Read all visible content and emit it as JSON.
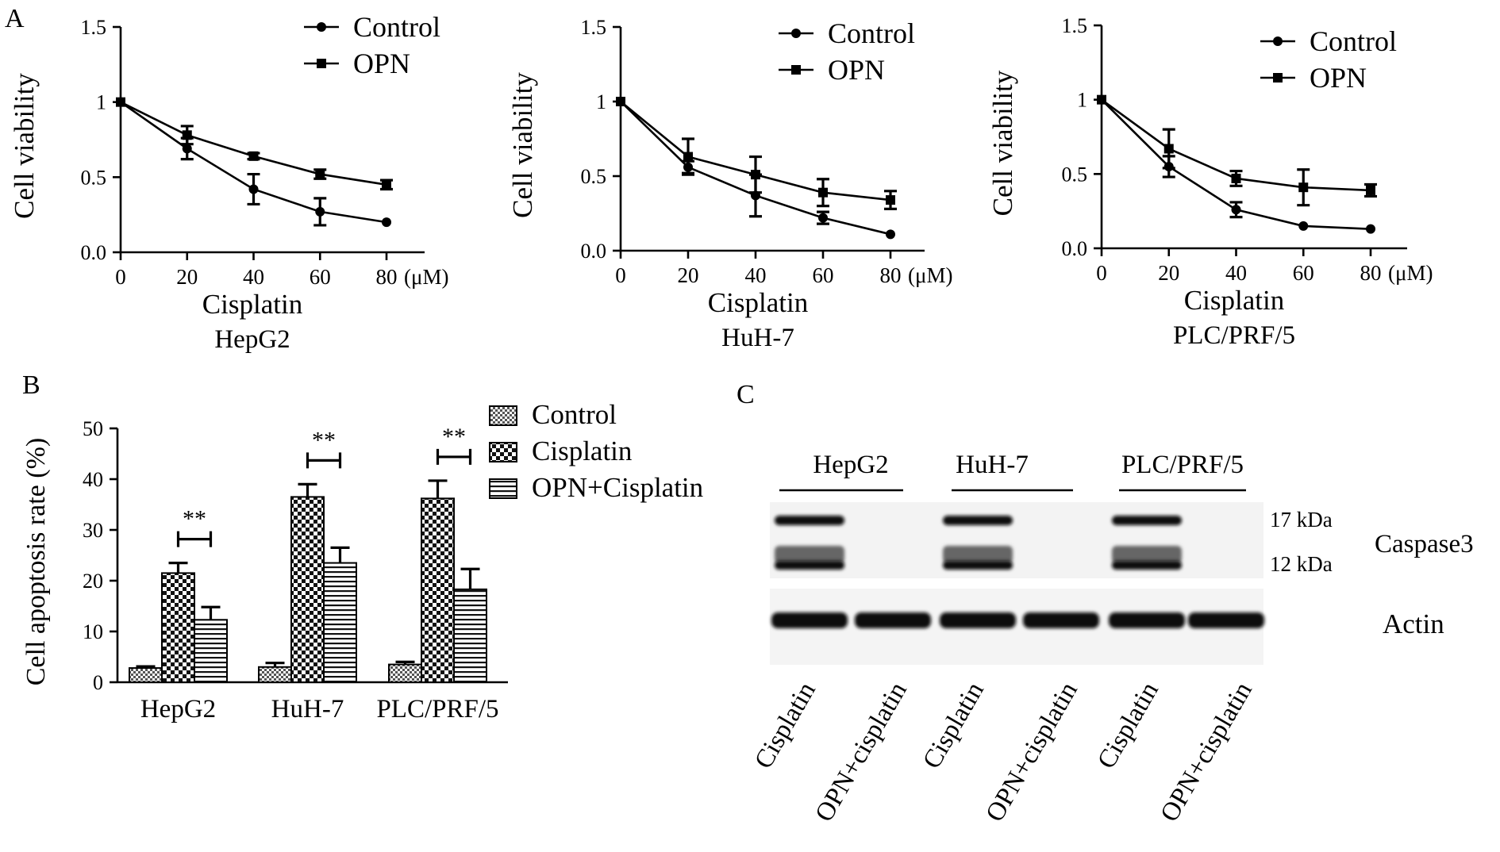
{
  "panel_labels": {
    "A": "A",
    "B": "B",
    "C": "C"
  },
  "chart_data": [
    {
      "type": "line",
      "title": "HepG2",
      "xlabel": "Cisplatin",
      "x_unit": "(μM)",
      "ylabel": "Cell viability",
      "x": [
        0,
        20,
        40,
        60,
        80
      ],
      "xticks": [
        "0",
        "20",
        "40",
        "60",
        "80"
      ],
      "ylim": [
        0,
        1.5
      ],
      "yticks": [
        "0.0",
        "0.5",
        "1",
        "1.5"
      ],
      "legend": "top-right",
      "series": [
        {
          "name": "Control",
          "marker": "circle",
          "values": [
            1.0,
            0.69,
            0.42,
            0.27,
            0.2
          ],
          "errors": [
            0,
            0.07,
            0.1,
            0.09,
            0
          ]
        },
        {
          "name": "OPN",
          "marker": "square",
          "values": [
            1.0,
            0.78,
            0.64,
            0.52,
            0.45
          ],
          "errors": [
            0,
            0.06,
            0.02,
            0.03,
            0.03
          ]
        }
      ]
    },
    {
      "type": "line",
      "title": "HuH-7",
      "xlabel": "Cisplatin",
      "x_unit": "(μM)",
      "ylabel": "Cell viability",
      "x": [
        0,
        20,
        40,
        60,
        80
      ],
      "xticks": [
        "0",
        "20",
        "40",
        "60",
        "80"
      ],
      "ylim": [
        0,
        1.5
      ],
      "yticks": [
        "0.0",
        "0.5",
        "1",
        "1.5"
      ],
      "legend": "top-right",
      "series": [
        {
          "name": "Control",
          "marker": "circle",
          "values": [
            1.0,
            0.56,
            0.37,
            0.22,
            0.11
          ],
          "errors": [
            0,
            0.04,
            0.14,
            0.04,
            0
          ]
        },
        {
          "name": "OPN",
          "marker": "square",
          "values": [
            1.0,
            0.63,
            0.51,
            0.39,
            0.34
          ],
          "errors": [
            0,
            0.12,
            0.12,
            0.09,
            0.06
          ]
        }
      ]
    },
    {
      "type": "line",
      "title": "PLC/PRF/5",
      "xlabel": "Cisplatin",
      "x_unit": "(μM)",
      "ylabel": "Cell viability",
      "x": [
        0,
        20,
        40,
        60,
        80
      ],
      "xticks": [
        "0",
        "20",
        "40",
        "60",
        "80"
      ],
      "ylim": [
        0,
        1.5
      ],
      "yticks": [
        "0.0",
        "0.5",
        "1",
        "1.5"
      ],
      "legend": "top-right",
      "series": [
        {
          "name": "Control",
          "marker": "circle",
          "values": [
            1.0,
            0.55,
            0.26,
            0.15,
            0.13
          ],
          "errors": [
            0,
            0.07,
            0.05,
            0,
            0
          ]
        },
        {
          "name": "OPN",
          "marker": "square",
          "values": [
            1.0,
            0.67,
            0.47,
            0.41,
            0.39
          ],
          "errors": [
            0,
            0.13,
            0.05,
            0.12,
            0.04
          ]
        }
      ]
    },
    {
      "type": "bar",
      "ylabel": "Cell apoptosis rate (%)",
      "categories": [
        "HepG2",
        "HuH-7",
        "PLC/PRF/5"
      ],
      "ylim": [
        0,
        50
      ],
      "yticks": [
        "0",
        "10",
        "20",
        "30",
        "40",
        "50"
      ],
      "legend": "top-right",
      "significance": "**",
      "series": [
        {
          "name": "Control",
          "pattern": "fine-check",
          "values": [
            2.8,
            3.0,
            3.5
          ],
          "errors": [
            0.3,
            0.8,
            0.5
          ]
        },
        {
          "name": "Cisplatin",
          "pattern": "checker",
          "values": [
            21.5,
            36.5,
            36.2
          ],
          "errors": [
            2.0,
            2.5,
            3.5
          ]
        },
        {
          "name": "OPN+Cisplatin",
          "pattern": "horizontal-stripes",
          "values": [
            12.3,
            23.5,
            18.3
          ],
          "errors": [
            2.5,
            3.0,
            4.0
          ]
        }
      ]
    }
  ],
  "blot": {
    "groups": [
      "HepG2",
      "HuH-7",
      "PLC/PRF/5"
    ],
    "lanes": [
      "Cisplatin",
      "OPN+cisplatin",
      "Cisplatin",
      "OPN+cisplatin",
      "Cisplatin",
      "OPN+cisplatin"
    ],
    "markers": [
      "17 kDa",
      "12 kDa"
    ],
    "proteins": [
      "Caspase3",
      "Actin"
    ]
  }
}
